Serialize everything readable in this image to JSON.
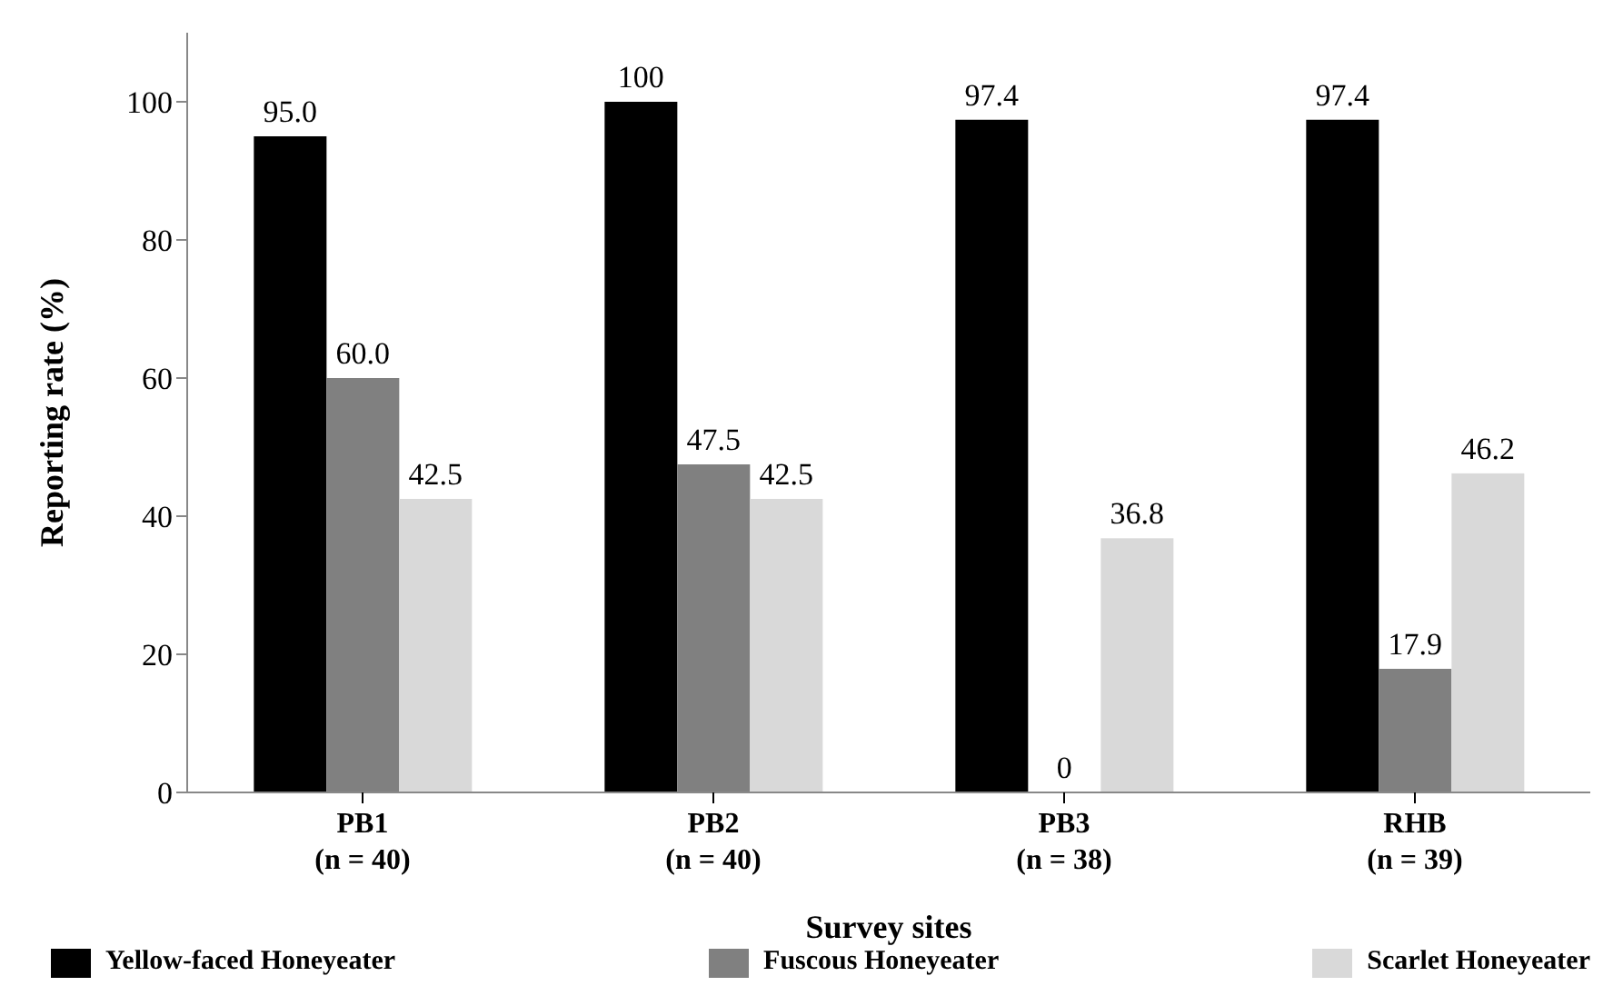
{
  "chart_data": {
    "type": "bar",
    "xlabel": "Survey sites",
    "ylabel": "Reporting rate (%)",
    "categories": [
      "PB1\n(n = 40)",
      "PB2\n(n = 40)",
      "PB3\n(n = 38)",
      "RHB\n(n = 39)"
    ],
    "series": [
      {
        "name": "Yellow-faced Honeyeater",
        "color": "#000000",
        "values": [
          95.0,
          100,
          97.4,
          97.4
        ],
        "value_labels": [
          "95.0",
          "100",
          "97.4",
          "97.4"
        ]
      },
      {
        "name": "Fuscous Honeyeater",
        "color": "#808080",
        "values": [
          60.0,
          47.5,
          0,
          17.9
        ],
        "value_labels": [
          "60.0",
          "47.5",
          "0",
          "17.9"
        ]
      },
      {
        "name": "Scarlet Honeyeater",
        "color": "#d9d9d9",
        "values": [
          42.5,
          42.5,
          36.8,
          46.2
        ],
        "value_labels": [
          "42.5",
          "42.5",
          "36.8",
          "46.2"
        ]
      }
    ],
    "ylim": [
      0,
      110
    ],
    "yticks": [
      0,
      20,
      40,
      60,
      80,
      100
    ],
    "grid": false,
    "legend": "bottom"
  }
}
